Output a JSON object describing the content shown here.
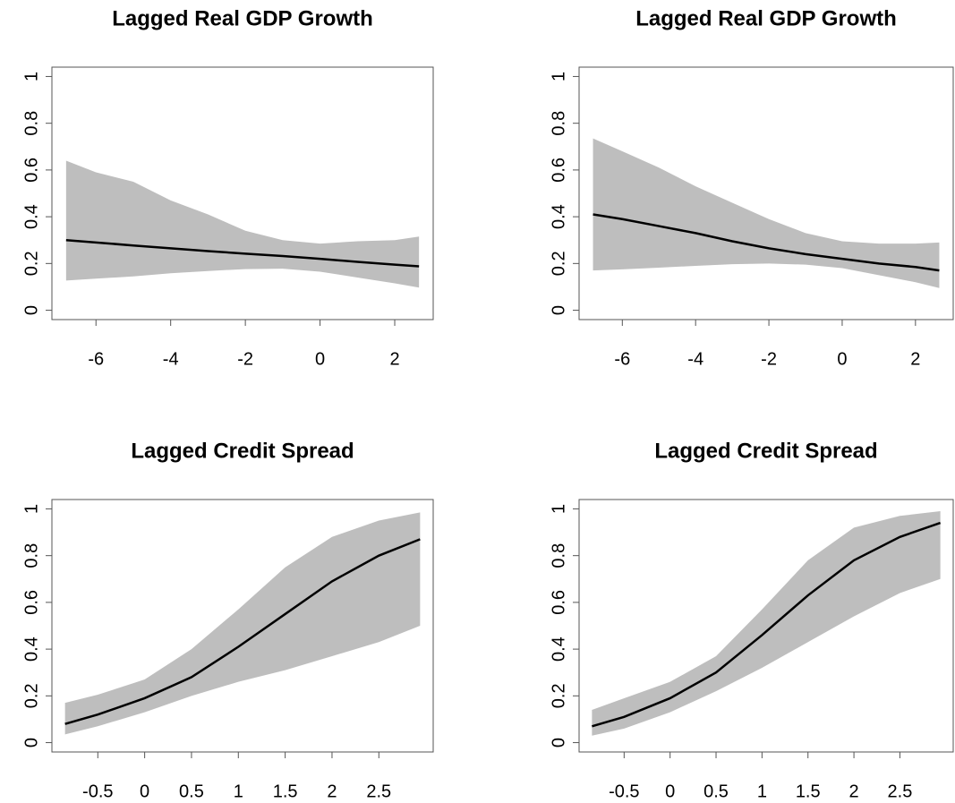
{
  "chart_data": [
    {
      "type": "line",
      "title": "Lagged Real GDP Growth",
      "x": [
        -6.8,
        -6,
        -5,
        -4,
        -3,
        -2,
        -1,
        0,
        1,
        2,
        2.65
      ],
      "values": [
        0.3,
        0.29,
        0.277,
        0.265,
        0.253,
        0.242,
        0.232,
        0.22,
        0.207,
        0.195,
        0.188
      ],
      "upper": [
        0.64,
        0.59,
        0.55,
        0.47,
        0.41,
        0.34,
        0.3,
        0.285,
        0.295,
        0.3,
        0.315
      ],
      "lower": [
        0.127,
        0.135,
        0.145,
        0.158,
        0.168,
        0.176,
        0.178,
        0.165,
        0.14,
        0.115,
        0.097
      ],
      "color": "#000000",
      "band_color": "#bebebe",
      "xlim": [
        -7.18,
        3.03
      ],
      "ylim": [
        -0.04,
        1.04
      ],
      "xticks": [
        -6,
        -4,
        -2,
        0,
        2
      ],
      "yticks": [
        0,
        0.2,
        0.4,
        0.6,
        0.8,
        1
      ]
    },
    {
      "type": "line",
      "title": "Lagged Real GDP Growth",
      "x": [
        -6.8,
        -6,
        -5,
        -4,
        -3,
        -2,
        -1,
        0,
        1,
        2,
        2.65
      ],
      "values": [
        0.41,
        0.39,
        0.36,
        0.33,
        0.295,
        0.265,
        0.24,
        0.22,
        0.2,
        0.185,
        0.17
      ],
      "upper": [
        0.735,
        0.68,
        0.61,
        0.53,
        0.46,
        0.39,
        0.33,
        0.295,
        0.285,
        0.285,
        0.29
      ],
      "lower": [
        0.17,
        0.175,
        0.182,
        0.19,
        0.197,
        0.2,
        0.195,
        0.18,
        0.15,
        0.12,
        0.095
      ],
      "color": "#000000",
      "band_color": "#bebebe",
      "xlim": [
        -7.18,
        3.03
      ],
      "ylim": [
        -0.04,
        1.04
      ],
      "xticks": [
        -6,
        -4,
        -2,
        0,
        2
      ],
      "yticks": [
        0,
        0.2,
        0.4,
        0.6,
        0.8,
        1
      ]
    },
    {
      "type": "line",
      "title": "Lagged Credit Spread",
      "x": [
        -0.85,
        -0.5,
        0,
        0.5,
        1,
        1.5,
        2,
        2.5,
        2.94
      ],
      "values": [
        0.08,
        0.12,
        0.19,
        0.28,
        0.41,
        0.55,
        0.69,
        0.8,
        0.87
      ],
      "upper": [
        0.17,
        0.205,
        0.27,
        0.4,
        0.57,
        0.75,
        0.88,
        0.95,
        0.985
      ],
      "lower": [
        0.035,
        0.07,
        0.13,
        0.2,
        0.26,
        0.31,
        0.37,
        0.43,
        0.5
      ],
      "color": "#000000",
      "band_color": "#bebebe",
      "xlim": [
        -0.99,
        3.08
      ],
      "ylim": [
        -0.04,
        1.04
      ],
      "xticks": [
        -0.5,
        0,
        0.5,
        1,
        1.5,
        2,
        2.5
      ],
      "yticks": [
        0,
        0.2,
        0.4,
        0.6,
        0.8,
        1
      ]
    },
    {
      "type": "line",
      "title": "Lagged Credit Spread",
      "x": [
        -0.85,
        -0.5,
        0,
        0.5,
        1,
        1.5,
        2,
        2.5,
        2.94
      ],
      "values": [
        0.07,
        0.11,
        0.19,
        0.3,
        0.46,
        0.63,
        0.78,
        0.88,
        0.94
      ],
      "upper": [
        0.14,
        0.19,
        0.26,
        0.37,
        0.57,
        0.78,
        0.92,
        0.97,
        0.99
      ],
      "lower": [
        0.03,
        0.06,
        0.13,
        0.22,
        0.32,
        0.43,
        0.54,
        0.64,
        0.7
      ],
      "color": "#000000",
      "band_color": "#bebebe",
      "xlim": [
        -0.99,
        3.08
      ],
      "ylim": [
        -0.04,
        1.04
      ],
      "xticks": [
        -0.5,
        0,
        0.5,
        1,
        1.5,
        2,
        2.5
      ],
      "yticks": [
        0,
        0.2,
        0.4,
        0.6,
        0.8,
        1
      ]
    }
  ]
}
